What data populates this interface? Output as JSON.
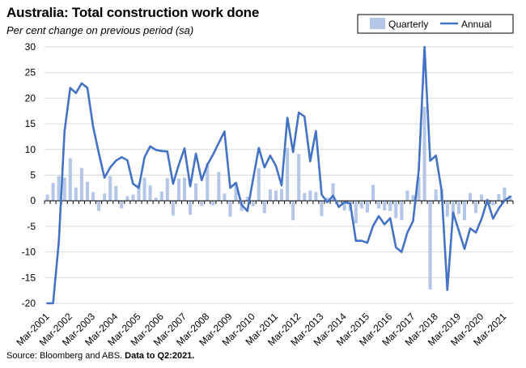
{
  "title": "Australia: Total construction work done",
  "subtitle": "Per cent change on previous period (sa)",
  "source": "Source: Bloomberg and ABS.",
  "source_note": "Data to Q2:2021.",
  "chart_data": {
    "type": "bar+line",
    "title": "Australia: Total construction work done",
    "subtitle": "Per cent change on previous period (sa)",
    "ylim": [
      -20,
      30
    ],
    "yticks": [
      -20,
      -15,
      -10,
      -5,
      0,
      5,
      10,
      15,
      20,
      25,
      30
    ],
    "xtick_labels": [
      "Mar-2001",
      "Mar-2002",
      "Mar-2003",
      "Mar-2004",
      "Mar-2005",
      "Mar-2006",
      "Mar-2007",
      "Mar-2008",
      "Mar-2009",
      "Mar-2010",
      "Mar-2011",
      "Mar-2012",
      "Mar-2013",
      "Mar-2014",
      "Mar-2015",
      "Mar-2016",
      "Mar-2017",
      "Mar-2018",
      "Mar-2019",
      "Mar-2020",
      "Mar-2021"
    ],
    "legend_position": "top-right",
    "grid": "horizontal",
    "x_start": "Q1:2001",
    "x_end": "Q2:2021",
    "series": [
      {
        "name": "Quarterly",
        "type": "bar",
        "color": "#b4c7e7",
        "values": [
          1.2,
          3.5,
          4.8,
          4.5,
          8.3,
          2.6,
          6.4,
          3.7,
          1.7,
          -2.0,
          1.4,
          4.8,
          2.9,
          -1.5,
          0.9,
          1.2,
          3.4,
          4.5,
          3.0,
          0.6,
          1.8,
          4.4,
          -2.9,
          4.3,
          4.5,
          -2.7,
          3.4,
          -1.0,
          7.3,
          -0.9,
          5.6,
          1.4,
          -3.1,
          3.5,
          -2.0,
          0.8,
          -1.1,
          6.3,
          -2.4,
          2.2,
          2.0,
          2.3,
          10.3,
          -3.8,
          9.1,
          1.5,
          2.0,
          1.7,
          -3.0,
          0.6,
          3.4,
          -0.4,
          -1.9,
          -2.0,
          -4.4,
          -1.5,
          -2.3,
          3.1,
          -1.5,
          -1.9,
          -2.0,
          -3.4,
          -3.8,
          2.0,
          1.1,
          4.7,
          18.3,
          -17.3,
          2.2,
          2.3,
          -3.1,
          -2.8,
          -2.6,
          -3.8,
          1.5,
          -2.4,
          1.2,
          0.4,
          -0.9,
          1.3,
          2.6,
          1.0
        ]
      },
      {
        "name": "Annual",
        "type": "line",
        "color": "#4472c4",
        "values": [
          -20.0,
          -20.0,
          -8.0,
          13.5,
          22.0,
          21.0,
          22.9,
          22.0,
          14.5,
          9.3,
          4.5,
          6.5,
          7.8,
          8.5,
          7.9,
          3.3,
          2.5,
          8.5,
          10.6,
          9.9,
          9.7,
          9.6,
          3.3,
          7.0,
          10.2,
          2.8,
          9.2,
          4.0,
          7.0,
          9.0,
          11.3,
          13.5,
          2.5,
          3.5,
          -0.8,
          -2.0,
          4.2,
          10.3,
          6.5,
          8.8,
          6.8,
          3.0,
          16.2,
          9.5,
          17.2,
          16.4,
          7.7,
          13.6,
          1.2,
          -0.3,
          1.0,
          -1.2,
          -0.3,
          -0.5,
          -7.8,
          -7.8,
          -8.2,
          -4.9,
          -3.0,
          -4.6,
          -3.4,
          -9.1,
          -10.0,
          -6.2,
          -4.0,
          6.0,
          30.0,
          7.8,
          8.8,
          2.0,
          -17.4,
          -2.3,
          -5.8,
          -9.4,
          -5.4,
          -6.2,
          -3.5,
          0.1,
          -3.5,
          -1.5,
          0.0,
          0.8
        ]
      }
    ]
  }
}
